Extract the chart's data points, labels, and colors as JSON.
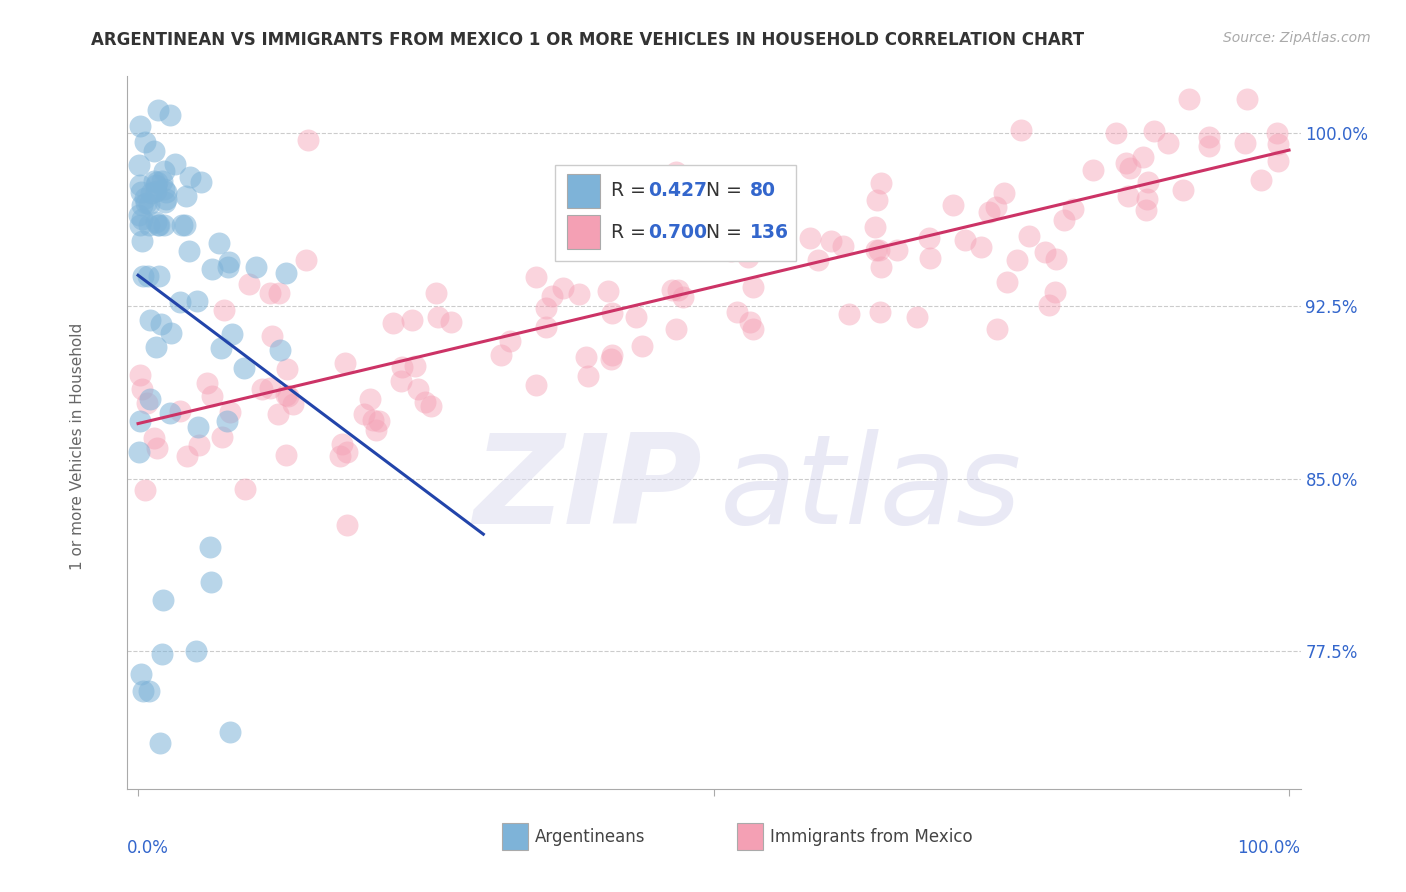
{
  "title": "ARGENTINEAN VS IMMIGRANTS FROM MEXICO 1 OR MORE VEHICLES IN HOUSEHOLD CORRELATION CHART",
  "source": "Source: ZipAtlas.com",
  "ylabel": "1 or more Vehicles in Household",
  "ytick_labels": [
    "77.5%",
    "85.0%",
    "92.5%",
    "100.0%"
  ],
  "ytick_values": [
    0.775,
    0.85,
    0.925,
    1.0
  ],
  "xlim": [
    -0.01,
    1.01
  ],
  "ylim": [
    0.715,
    1.025
  ],
  "legend_label1": "Argentineans",
  "legend_label2": "Immigrants from Mexico",
  "R_blue": 0.427,
  "N_blue": 80,
  "R_pink": 0.7,
  "N_pink": 136,
  "blue_color": "#7EB3D8",
  "pink_color": "#F4A0B4",
  "blue_line_color": "#2244AA",
  "pink_line_color": "#CC3366",
  "tick_label_color": "#3366CC",
  "background_color": "#FFFFFF",
  "grid_color": "#CCCCCC",
  "title_fontsize": 12,
  "blue_seed": 7,
  "pink_seed": 55
}
